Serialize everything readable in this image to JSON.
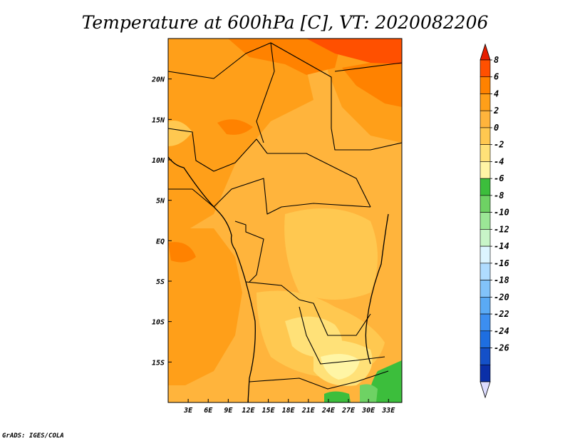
{
  "title": "Temperature at 600hPa [C], VT: 2020082206",
  "credit": "GrADS: IGES/COLA",
  "map": {
    "region": "Central and Southern-Central Africa",
    "variable": "Temperature at 600hPa",
    "units": "C",
    "valid_time": "2020082206",
    "lon_range": [
      0,
      35
    ],
    "lat_range": [
      -20,
      25
    ],
    "lon_ticks": [
      {
        "value": 3,
        "label": "3E"
      },
      {
        "value": 6,
        "label": "6E"
      },
      {
        "value": 9,
        "label": "9E"
      },
      {
        "value": 12,
        "label": "12E"
      },
      {
        "value": 15,
        "label": "15E"
      },
      {
        "value": 18,
        "label": "18E"
      },
      {
        "value": 21,
        "label": "21E"
      },
      {
        "value": 24,
        "label": "24E"
      },
      {
        "value": 27,
        "label": "27E"
      },
      {
        "value": 30,
        "label": "30E"
      },
      {
        "value": 33,
        "label": "33E"
      }
    ],
    "lat_ticks": [
      {
        "value": 20,
        "label": "20N"
      },
      {
        "value": 15,
        "label": "15N"
      },
      {
        "value": 10,
        "label": "10N"
      },
      {
        "value": 5,
        "label": "5N"
      },
      {
        "value": 0,
        "label": "EQ"
      },
      {
        "value": -5,
        "label": "5S"
      },
      {
        "value": -10,
        "label": "10S"
      },
      {
        "value": -15,
        "label": "15S"
      }
    ]
  },
  "colorbar": {
    "colors": [
      "#000080",
      "#0a2fa8",
      "#1450c8",
      "#1e6ee0",
      "#3c8ef0",
      "#5aaaf5",
      "#82c3fa",
      "#afdcff",
      "#dcf5ff",
      "#c8f5c8",
      "#9be696",
      "#6ed264",
      "#3cbe3c",
      "#fff5a5",
      "#ffe178",
      "#ffc850",
      "#ffb43c",
      "#ff9f19",
      "#ff8200",
      "#ff5000",
      "#e61e00"
    ],
    "labels": [
      "8",
      "6",
      "4",
      "2",
      "0",
      "-2",
      "-4",
      "-6",
      "-8",
      "-10",
      "-12",
      "-14",
      "-16",
      "-18",
      "-20",
      "-22",
      "-24",
      "-26"
    ]
  }
}
